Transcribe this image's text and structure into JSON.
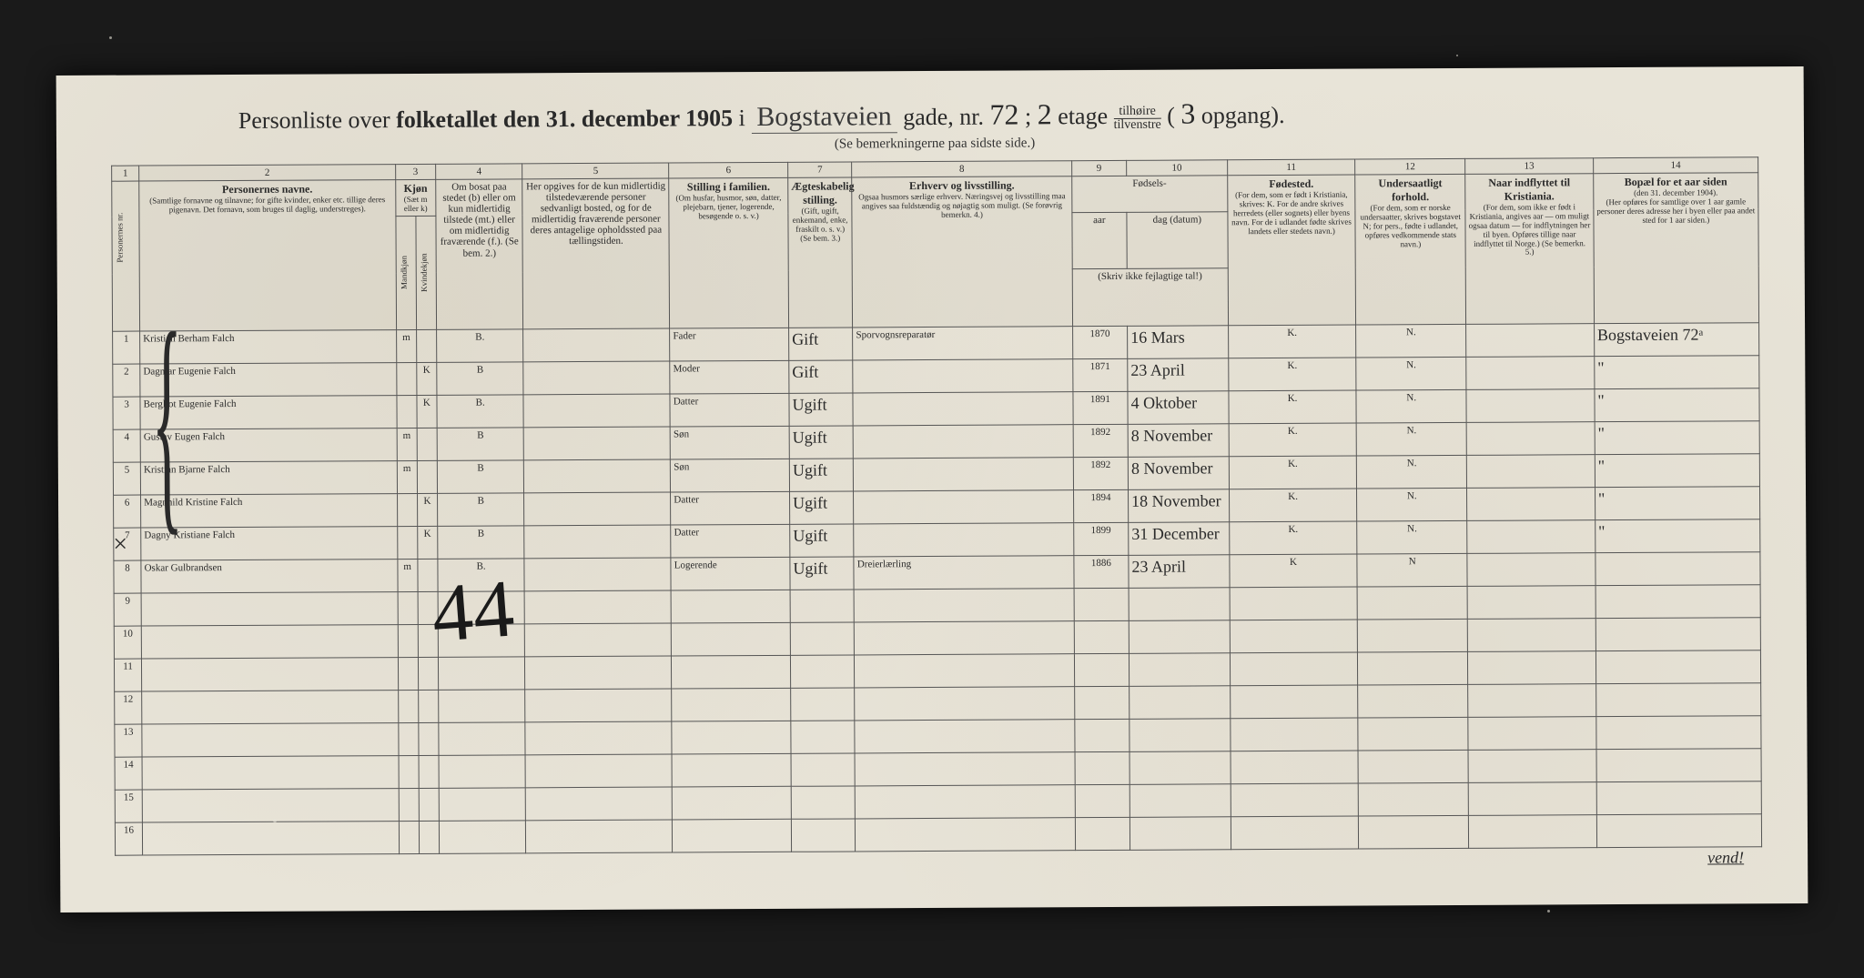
{
  "title": {
    "prefix": "Personliste over",
    "bold": "folketallet den 31. december 1905",
    "i": "i",
    "street": "Bogstaveien",
    "gade": "gade, nr.",
    "number": "72",
    "semi": ";",
    "floor": "2",
    "etage": "etage",
    "tilhoire": "tilhøire",
    "tilvenstre": "tilvenstre",
    "paren_open": "(",
    "opgang_num": "3",
    "opgang": "opgang).",
    "subtitle": "(Se bemerkningerne paa sidste side.)"
  },
  "colnums": [
    "1",
    "2",
    "3",
    "4",
    "5",
    "6",
    "7",
    "8",
    "9",
    "10",
    "11",
    "12",
    "13",
    "14"
  ],
  "headers": {
    "personernes_nr": "Personernes nr.",
    "navne_title": "Personernes navne.",
    "navne_sub": "(Samtlige fornavne og tilnavne; for gifte kvinder, enker etc. tillige deres pigenavn. Det fornavn, som bruges til daglig, understreges).",
    "kjon": "Kjøn",
    "kjon_sub": "(Sæt m eller k)",
    "mandkjon": "Mandkjøn",
    "kvindekjon": "Kvindekjøn",
    "bosat": "Om bosat paa stedet (b) eller om kun midlertidig tilstede (mt.) eller om midlertidig fraværende (f.). (Se bem. 2.)",
    "opgives": "Her opgives for de kun midlertidig tilstedeværende personer sedvanligt bosted, og for de midlertidig fraværende personer deres antagelige opholdssted paa tællingstiden.",
    "stilling_fam": "Stilling i familien.",
    "stilling_fam_sub": "(Om husfar, husmor, søn, datter, plejebarn, tjener, logerende, besøgende o. s. v.)",
    "aegte": "Ægteskabelig stilling.",
    "aegte_sub": "(Gift, ugift, enkemand, enke, fraskilt o. s. v.) (Se bem. 3.)",
    "erhverv": "Erhverv og livsstilling.",
    "erhverv_sub": "Ogsaa husmors særlige erhverv. Næringsvej og livsstilling maa angives saa fuldstændig og nøjagtig som muligt. (Se forøvrig bemerkn. 4.)",
    "fodsels": "Fødsels-",
    "aar": "aar",
    "dag": "dag (datum)",
    "skriv": "(Skriv ikke fejlagtige tal!)",
    "fodested": "Fødested.",
    "fodested_sub": "(For dem, som er født i Kristiania, skrives: K. For de andre skrives herredets (eller sognets) eller byens navn. For de i udlandet fødte skrives landets eller stedets navn.)",
    "undersaat": "Undersaatligt forhold.",
    "undersaat_sub": "(For dem, som er norske undersaatter, skrives bogstavet N; for pers., fødte i udlandet, opføres vedkommende stats navn.)",
    "indflyttet": "Naar indflyttet til Kristiania.",
    "indflyttet_sub": "(For dem, som ikke er født i Kristiania, angives aar — om muligt ogsaa datum — for indflytningen her til byen. Opføres tillige naar indflyttet til Norge.) (Se bemerkn. 5.)",
    "bopael": "Bopæl for et aar siden",
    "bopael_sub": "(den 31. december 1904).",
    "bopael_sub2": "(Her opføres for samtlige over 1 aar gamle personer deres adresse her i byen eller paa andet sted for 1 aar siden.)"
  },
  "rows": [
    {
      "nr": "1",
      "name": "Kristian Berham Falch",
      "m": "m",
      "k": "",
      "b": "B.",
      "sted": "",
      "fam": "Fader",
      "aegte": "Gift",
      "erhverv": "Sporvognsreparatør",
      "aar": "1870",
      "dag": "16 Mars",
      "fode": "K.",
      "und": "N.",
      "ind": "",
      "bop": "Bogstaveien 72ᵃ"
    },
    {
      "nr": "2",
      "name": "Dagmar Eugenie Falch",
      "m": "",
      "k": "K",
      "b": "B",
      "sted": "",
      "fam": "Moder",
      "aegte": "Gift",
      "erhverv": "",
      "aar": "1871",
      "dag": "23 April",
      "fode": "K.",
      "und": "N.",
      "ind": "",
      "bop": "\""
    },
    {
      "nr": "3",
      "name": "Bergliot Eugenie Falch",
      "m": "",
      "k": "K",
      "b": "B.",
      "sted": "",
      "fam": "Datter",
      "aegte": "Ugift",
      "erhverv": "",
      "aar": "1891",
      "dag": "4 Oktober",
      "fode": "K.",
      "und": "N.",
      "ind": "",
      "bop": "\""
    },
    {
      "nr": "4",
      "name": "Gustav Eugen Falch",
      "m": "m",
      "k": "",
      "b": "B",
      "sted": "",
      "fam": "Søn",
      "aegte": "Ugift",
      "erhverv": "",
      "aar": "1892",
      "dag": "8 November",
      "fode": "K.",
      "und": "N.",
      "ind": "",
      "bop": "\""
    },
    {
      "nr": "5",
      "name": "Kristian Bjarne Falch",
      "m": "m",
      "k": "",
      "b": "B",
      "sted": "",
      "fam": "Søn",
      "aegte": "Ugift",
      "erhverv": "",
      "aar": "1892",
      "dag": "8 November",
      "fode": "K.",
      "und": "N.",
      "ind": "",
      "bop": "\""
    },
    {
      "nr": "6",
      "name": "Magnhild Kristine Falch",
      "m": "",
      "k": "K",
      "b": "B",
      "sted": "",
      "fam": "Datter",
      "aegte": "Ugift",
      "erhverv": "",
      "aar": "1894",
      "dag": "18 November",
      "fode": "K.",
      "und": "N.",
      "ind": "",
      "bop": "\""
    },
    {
      "nr": "7",
      "name": "Dagny Kristiane Falch",
      "m": "",
      "k": "K",
      "b": "B",
      "sted": "",
      "fam": "Datter",
      "aegte": "Ugift",
      "erhverv": "",
      "aar": "1899",
      "dag": "31 December",
      "fode": "K.",
      "und": "N.",
      "ind": "",
      "bop": "\""
    },
    {
      "nr": "8",
      "name": "Oskar Gulbrandsen",
      "m": "m",
      "k": "",
      "b": "B.",
      "sted": "",
      "fam": "Logerende",
      "aegte": "Ugift",
      "erhverv": "Dreierlærling",
      "aar": "1886",
      "dag": "23 April",
      "fode": "K",
      "und": "N",
      "ind": "",
      "bop": ""
    }
  ],
  "empty_rows": [
    "9",
    "10",
    "11",
    "12",
    "13",
    "14",
    "15",
    "16"
  ],
  "big_number": "44",
  "vend": "vend!",
  "colwidths": {
    "c1": "30px",
    "c2": "280px",
    "c3a": "22px",
    "c3b": "22px",
    "c4": "95px",
    "c5": "160px",
    "c6": "130px",
    "c7": "70px",
    "c8": "240px",
    "c9": "60px",
    "c10": "110px",
    "c11": "140px",
    "c12": "120px",
    "c13": "140px",
    "c14": "180px"
  },
  "colors": {
    "paper": "#e8e4d8",
    "ink": "#2a2a2a",
    "border": "#555555",
    "background": "#1a1a1a"
  }
}
